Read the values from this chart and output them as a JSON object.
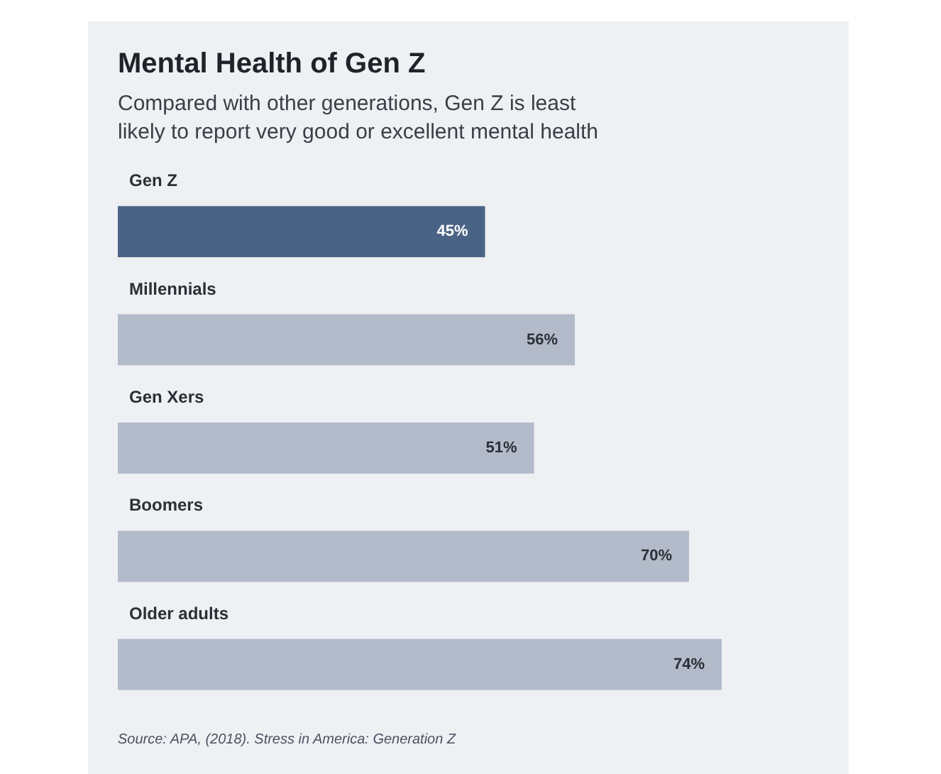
{
  "chart_data": {
    "type": "bar",
    "orientation": "horizontal",
    "title": "Mental Health of Gen Z",
    "subtitle": "Compared with other generations, Gen Z is least likely to report very good or excellent mental health",
    "categories": [
      "Gen Z",
      "Millennials",
      "Gen Xers",
      "Boomers",
      "Older adults"
    ],
    "values": [
      45,
      56,
      51,
      70,
      74
    ],
    "colors": [
      "#4a6385",
      "#b3bbca",
      "#b3bbca",
      "#b3bbca",
      "#b3bbca"
    ],
    "value_labels": [
      "45%",
      "56%",
      "51%",
      "70%",
      "74%"
    ],
    "annotations": [
      "Source: APA, (2018). Stress in America: Generation Z"
    ]
  }
}
